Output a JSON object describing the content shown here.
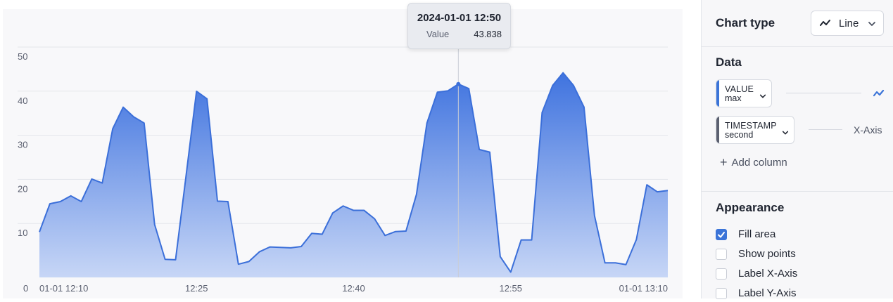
{
  "chart_data": {
    "type": "area",
    "x": [
      "12:10",
      "12:11",
      "12:12",
      "12:13",
      "12:14",
      "12:15",
      "12:16",
      "12:17",
      "12:18",
      "12:19",
      "12:20",
      "12:21",
      "12:22",
      "12:23",
      "12:24",
      "12:25",
      "12:26",
      "12:27",
      "12:28",
      "12:29",
      "12:30",
      "12:31",
      "12:32",
      "12:33",
      "12:34",
      "12:35",
      "12:36",
      "12:37",
      "12:38",
      "12:39",
      "12:40",
      "12:41",
      "12:42",
      "12:43",
      "12:44",
      "12:45",
      "12:46",
      "12:47",
      "12:48",
      "12:49",
      "12:50",
      "12:51",
      "12:52",
      "12:53",
      "12:54",
      "12:55",
      "12:56",
      "12:57",
      "12:58",
      "12:59",
      "13:00",
      "13:01",
      "13:02",
      "13:03",
      "13:04",
      "13:05",
      "13:06",
      "13:07",
      "13:08",
      "13:09",
      "13:10"
    ],
    "series": [
      {
        "values": [
          10.3,
          16.7,
          17.2,
          18.5,
          17.2,
          22.3,
          21.4,
          33.7,
          38.6,
          36.4,
          35.0,
          12.0,
          4.1,
          4.0,
          23.0,
          42.2,
          40.5,
          17.3,
          17.2,
          3.0,
          3.6,
          5.8,
          6.9,
          6.8,
          6.7,
          7.0,
          10.0,
          9.8,
          14.6,
          16.2,
          15.2,
          15.2,
          13.3,
          9.5,
          10.4,
          10.5,
          18.8,
          35.0,
          42.0,
          42.3,
          43.838,
          42.8,
          29.0,
          28.4,
          4.7,
          1.2,
          8.5,
          8.5,
          37.4,
          43.5,
          46.4,
          43.5,
          38.6,
          14.0,
          3.3,
          3.3,
          2.9,
          8.6,
          21.0,
          19.4,
          19.7
        ]
      }
    ],
    "xticks": [
      "01-01 12:10",
      "12:25",
      "12:40",
      "12:55",
      "01-01 13:10"
    ],
    "yticks": [
      0,
      10,
      20,
      30,
      40,
      50
    ],
    "ylim": [
      0,
      50
    ],
    "grid": true,
    "highlight": {
      "title": "2024-01-01 12:50",
      "label": "Value",
      "value": "43.838",
      "index": 40
    },
    "colors": {
      "line": "#3b6fd9",
      "fill_top": "#3f73df",
      "fill_bottom": "#c7d6f6",
      "grid": "#e4e6eb"
    }
  },
  "sidebar": {
    "chart_type": {
      "title": "Chart type",
      "selected": "Line",
      "icon": "line-chart-icon"
    },
    "data": {
      "title": "Data",
      "columns": [
        {
          "name": "VALUE",
          "agg": "max",
          "role_icon": "line-series-icon",
          "accent": "#3b74d8"
        },
        {
          "name": "TIMESTAMP",
          "agg": "second",
          "role": "X-Axis",
          "accent": "#5b6070"
        }
      ],
      "add_column": "Add column"
    },
    "appearance": {
      "title": "Appearance",
      "options": [
        {
          "label": "Fill area",
          "checked": true
        },
        {
          "label": "Show points",
          "checked": false
        },
        {
          "label": "Label X-Axis",
          "checked": false
        },
        {
          "label": "Label Y-Axis",
          "checked": false
        }
      ]
    }
  }
}
